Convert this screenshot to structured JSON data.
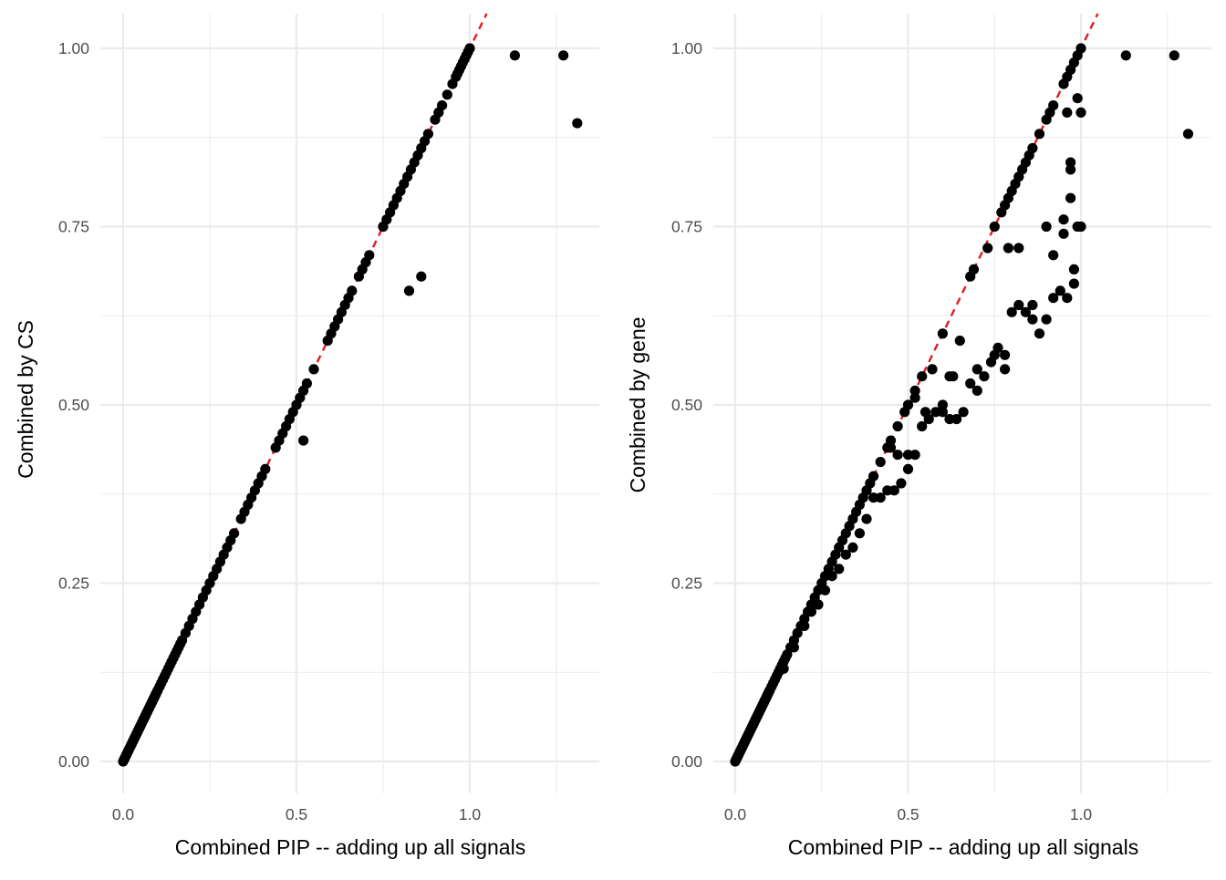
{
  "colors": {
    "point": "#000000",
    "refline": "#e41a1c",
    "grid": "#ebebeb",
    "tick": "#4d4d4d"
  },
  "chart_data": [
    {
      "type": "scatter",
      "xlabel": "Combined PIP -- adding up all signals",
      "ylabel": "Combined by CS",
      "xlim": [
        -0.05,
        1.37
      ],
      "ylim": [
        -0.065,
        1.07
      ],
      "xticks": [
        0.0,
        0.5,
        1.0
      ],
      "xtick_labels": [
        "0.0",
        "0.5",
        "1.0"
      ],
      "yticks": [
        0.0,
        0.25,
        0.5,
        0.75,
        1.0
      ],
      "ytick_labels": [
        "0.00",
        "0.25",
        "0.50",
        "0.75",
        "1.00"
      ],
      "grid": true,
      "reference_line": {
        "slope": 1,
        "intercept": 0,
        "style": "dashed",
        "color": "red"
      },
      "points": {
        "x": [
          0,
          0.003,
          0.005,
          0.008,
          0.01,
          0.013,
          0.015,
          0.018,
          0.02,
          0.023,
          0.025,
          0.028,
          0.03,
          0.033,
          0.035,
          0.038,
          0.04,
          0.043,
          0.045,
          0.048,
          0.05,
          0.053,
          0.055,
          0.058,
          0.06,
          0.063,
          0.065,
          0.068,
          0.07,
          0.073,
          0.075,
          0.078,
          0.08,
          0.083,
          0.085,
          0.088,
          0.09,
          0.093,
          0.095,
          0.098,
          0.1,
          0.105,
          0.11,
          0.115,
          0.12,
          0.125,
          0.13,
          0.135,
          0.14,
          0.145,
          0.15,
          0.155,
          0.16,
          0.165,
          0.17,
          0.18,
          0.19,
          0.2,
          0.21,
          0.22,
          0.23,
          0.24,
          0.25,
          0.26,
          0.27,
          0.28,
          0.29,
          0.3,
          0.31,
          0.32,
          0.34,
          0.35,
          0.36,
          0.37,
          0.38,
          0.39,
          0.4,
          0.41,
          0.44,
          0.45,
          0.46,
          0.47,
          0.48,
          0.49,
          0.5,
          0.51,
          0.52,
          0.53,
          0.55,
          0.59,
          0.6,
          0.61,
          0.62,
          0.63,
          0.64,
          0.65,
          0.66,
          0.68,
          0.69,
          0.7,
          0.71,
          0.75,
          0.76,
          0.77,
          0.78,
          0.79,
          0.8,
          0.81,
          0.82,
          0.83,
          0.84,
          0.85,
          0.86,
          0.87,
          0.88,
          0.9,
          0.91,
          0.92,
          0.935,
          0.95,
          0.96,
          0.965,
          0.97,
          0.975,
          0.98,
          0.985,
          0.99,
          0.995,
          1.0,
          0.52,
          0.825,
          0.86,
          1.13,
          1.27,
          1.31
        ],
        "y": [
          0,
          0.003,
          0.005,
          0.008,
          0.01,
          0.013,
          0.015,
          0.018,
          0.02,
          0.023,
          0.025,
          0.028,
          0.03,
          0.033,
          0.035,
          0.038,
          0.04,
          0.043,
          0.045,
          0.048,
          0.05,
          0.053,
          0.055,
          0.058,
          0.06,
          0.063,
          0.065,
          0.068,
          0.07,
          0.073,
          0.075,
          0.078,
          0.08,
          0.083,
          0.085,
          0.088,
          0.09,
          0.093,
          0.095,
          0.098,
          0.1,
          0.105,
          0.11,
          0.115,
          0.12,
          0.125,
          0.13,
          0.135,
          0.14,
          0.145,
          0.15,
          0.155,
          0.16,
          0.165,
          0.17,
          0.18,
          0.19,
          0.2,
          0.21,
          0.22,
          0.23,
          0.24,
          0.25,
          0.26,
          0.27,
          0.28,
          0.29,
          0.3,
          0.31,
          0.32,
          0.34,
          0.35,
          0.36,
          0.37,
          0.38,
          0.39,
          0.4,
          0.41,
          0.44,
          0.45,
          0.46,
          0.47,
          0.48,
          0.49,
          0.5,
          0.51,
          0.52,
          0.53,
          0.55,
          0.59,
          0.6,
          0.61,
          0.62,
          0.63,
          0.64,
          0.65,
          0.66,
          0.68,
          0.69,
          0.7,
          0.71,
          0.75,
          0.76,
          0.77,
          0.78,
          0.79,
          0.8,
          0.81,
          0.82,
          0.83,
          0.84,
          0.85,
          0.86,
          0.87,
          0.88,
          0.9,
          0.91,
          0.92,
          0.935,
          0.95,
          0.96,
          0.965,
          0.97,
          0.975,
          0.98,
          0.985,
          0.99,
          0.995,
          1.0,
          0.45,
          0.66,
          0.68,
          0.99,
          0.99,
          0.895
        ]
      }
    },
    {
      "type": "scatter",
      "xlabel": "Combined PIP -- adding up all signals",
      "ylabel": "Combined by gene",
      "xlim": [
        -0.05,
        1.37
      ],
      "ylim": [
        -0.065,
        1.07
      ],
      "xticks": [
        0.0,
        0.5,
        1.0
      ],
      "xtick_labels": [
        "0.0",
        "0.5",
        "1.0"
      ],
      "yticks": [
        0.0,
        0.25,
        0.5,
        0.75,
        1.0
      ],
      "ytick_labels": [
        "0.00",
        "0.25",
        "0.50",
        "0.75",
        "1.00"
      ],
      "grid": true,
      "reference_line": {
        "slope": 1,
        "intercept": 0,
        "style": "dashed",
        "color": "red"
      },
      "points": {
        "x": [
          0,
          0.003,
          0.005,
          0.008,
          0.01,
          0.013,
          0.015,
          0.018,
          0.02,
          0.023,
          0.025,
          0.028,
          0.03,
          0.033,
          0.035,
          0.038,
          0.04,
          0.043,
          0.045,
          0.048,
          0.05,
          0.053,
          0.055,
          0.058,
          0.06,
          0.063,
          0.065,
          0.068,
          0.07,
          0.073,
          0.075,
          0.078,
          0.08,
          0.083,
          0.085,
          0.088,
          0.09,
          0.093,
          0.095,
          0.098,
          0.1,
          0.105,
          0.11,
          0.115,
          0.12,
          0.125,
          0.13,
          0.135,
          0.14,
          0.145,
          0.15,
          0.16,
          0.17,
          0.18,
          0.19,
          0.2,
          0.21,
          0.22,
          0.23,
          0.24,
          0.25,
          0.26,
          0.27,
          0.28,
          0.29,
          0.3,
          0.31,
          0.32,
          0.33,
          0.34,
          0.35,
          0.36,
          0.37,
          0.38,
          0.39,
          0.4,
          0.42,
          0.44,
          0.45,
          0.47,
          0.49,
          0.5,
          0.52,
          0.54,
          0.6,
          0.68,
          0.69,
          0.75,
          0.77,
          0.78,
          0.79,
          0.8,
          0.81,
          0.82,
          0.83,
          0.84,
          0.85,
          0.86,
          0.88,
          0.9,
          0.91,
          0.92,
          0.95,
          0.96,
          0.97,
          0.98,
          0.99,
          1.0,
          0.14,
          0.17,
          0.2,
          0.22,
          0.24,
          0.26,
          0.28,
          0.3,
          0.32,
          0.34,
          0.36,
          0.38,
          0.4,
          0.42,
          0.44,
          0.46,
          0.48,
          0.5,
          0.52,
          0.54,
          0.56,
          0.58,
          0.6,
          0.62,
          0.64,
          0.66,
          0.68,
          0.7,
          0.72,
          0.74,
          0.76,
          0.78,
          0.8,
          0.82,
          0.84,
          0.86,
          0.88,
          0.9,
          0.92,
          0.94,
          0.96,
          0.98,
          1.0,
          0.45,
          0.47,
          0.5,
          0.52,
          0.55,
          0.57,
          0.6,
          0.62,
          0.65,
          0.63,
          0.7,
          0.73,
          0.75,
          0.78,
          0.79,
          0.82,
          0.86,
          0.9,
          0.92,
          0.95,
          0.97,
          0.97,
          0.97,
          0.99,
          1.0,
          0.96,
          0.95,
          0.98,
          0.99,
          1.13,
          1.27,
          1.31
        ],
        "y": [
          0,
          0.003,
          0.005,
          0.008,
          0.01,
          0.013,
          0.015,
          0.018,
          0.02,
          0.023,
          0.025,
          0.028,
          0.03,
          0.033,
          0.035,
          0.038,
          0.04,
          0.043,
          0.045,
          0.048,
          0.05,
          0.053,
          0.055,
          0.058,
          0.06,
          0.063,
          0.065,
          0.068,
          0.07,
          0.073,
          0.075,
          0.078,
          0.08,
          0.083,
          0.085,
          0.088,
          0.09,
          0.093,
          0.095,
          0.098,
          0.1,
          0.105,
          0.11,
          0.115,
          0.12,
          0.125,
          0.13,
          0.135,
          0.14,
          0.145,
          0.15,
          0.16,
          0.17,
          0.18,
          0.19,
          0.2,
          0.21,
          0.22,
          0.23,
          0.24,
          0.25,
          0.26,
          0.27,
          0.28,
          0.29,
          0.3,
          0.31,
          0.32,
          0.33,
          0.34,
          0.35,
          0.36,
          0.37,
          0.38,
          0.39,
          0.4,
          0.42,
          0.44,
          0.45,
          0.47,
          0.49,
          0.5,
          0.52,
          0.54,
          0.6,
          0.68,
          0.69,
          0.75,
          0.77,
          0.78,
          0.79,
          0.8,
          0.81,
          0.82,
          0.83,
          0.84,
          0.85,
          0.86,
          0.88,
          0.9,
          0.91,
          0.92,
          0.95,
          0.96,
          0.97,
          0.98,
          0.99,
          1.0,
          0.13,
          0.16,
          0.19,
          0.21,
          0.22,
          0.24,
          0.26,
          0.27,
          0.29,
          0.3,
          0.32,
          0.34,
          0.37,
          0.37,
          0.38,
          0.38,
          0.39,
          0.41,
          0.43,
          0.47,
          0.48,
          0.49,
          0.49,
          0.48,
          0.48,
          0.49,
          0.53,
          0.52,
          0.54,
          0.56,
          0.58,
          0.57,
          0.63,
          0.64,
          0.63,
          0.62,
          0.6,
          0.62,
          0.65,
          0.66,
          0.65,
          0.67,
          0.75,
          0.44,
          0.43,
          0.43,
          0.51,
          0.49,
          0.55,
          0.5,
          0.54,
          0.59,
          0.54,
          0.55,
          0.72,
          0.57,
          0.55,
          0.72,
          0.72,
          0.64,
          0.75,
          0.71,
          0.76,
          0.79,
          0.84,
          0.83,
          0.93,
          0.91,
          0.91,
          0.74,
          0.69,
          0.75,
          0.99,
          0.99,
          0.88
        ]
      }
    }
  ]
}
